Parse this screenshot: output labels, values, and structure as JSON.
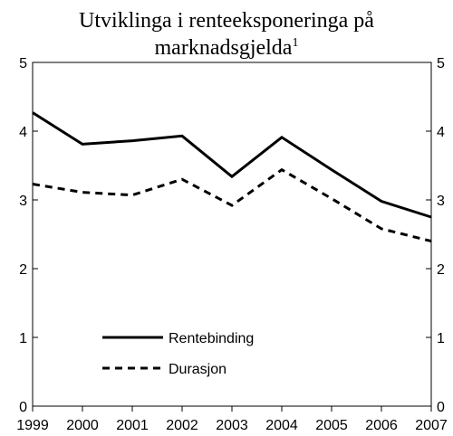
{
  "chart_data": {
    "type": "line",
    "title_main": "Utviklinga i renteeksponeringa på",
    "title_sub": "marknadsgjelda",
    "title_sup": "1",
    "x": [
      1999,
      2000,
      2001,
      2002,
      2003,
      2004,
      2005,
      2006,
      2007
    ],
    "xticks": [
      "1999",
      "2000",
      "2001",
      "2002",
      "2003",
      "2004",
      "2005",
      "2006",
      "2007"
    ],
    "yticks": [
      "0",
      "1",
      "2",
      "3",
      "4",
      "5"
    ],
    "ylim": [
      0,
      5
    ],
    "series": [
      {
        "name": "Rentebinding",
        "style": "solid",
        "color": "#000000",
        "values": [
          4.27,
          3.81,
          3.86,
          3.93,
          3.34,
          3.91,
          3.44,
          2.98,
          2.75
        ]
      },
      {
        "name": "Durasjon",
        "style": "dashed",
        "color": "#000000",
        "values": [
          3.23,
          3.11,
          3.07,
          3.3,
          2.92,
          3.44,
          3.02,
          2.58,
          2.4
        ]
      }
    ],
    "legend_position": "lower-left",
    "grid": false
  }
}
